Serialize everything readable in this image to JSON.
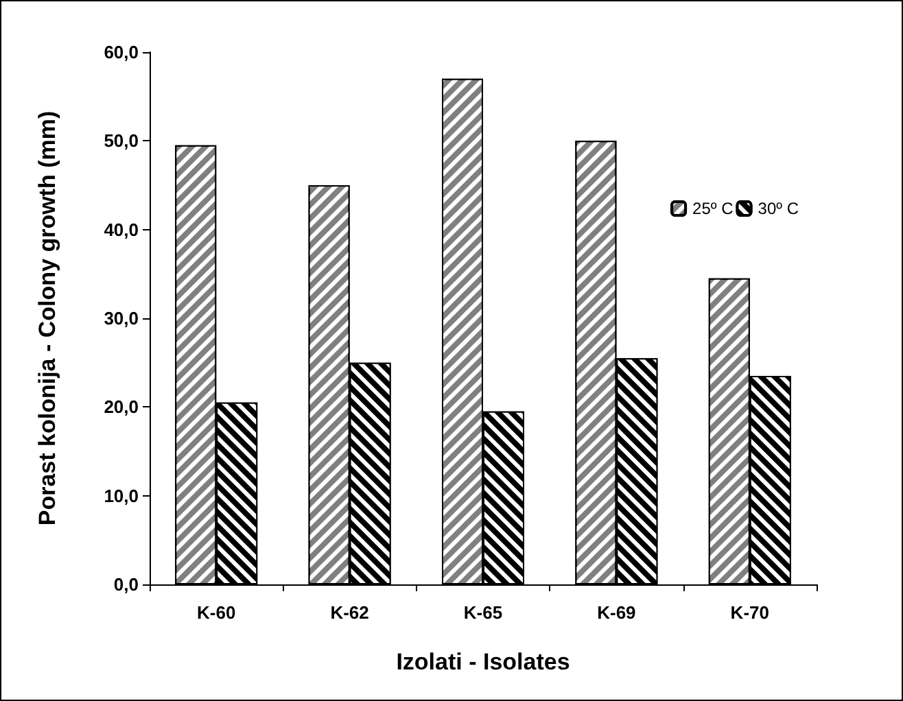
{
  "chart_data": {
    "type": "bar",
    "xlabel": "Izolati - Isolates",
    "ylabel": "Porast kolonija - Colony growth (mm)",
    "categories": [
      "K-60",
      "K-62",
      "K-65",
      "K-69",
      "K-70"
    ],
    "series": [
      {
        "name": "25º C",
        "color": "#808080",
        "values": [
          49.5,
          45,
          57,
          50,
          34.5
        ]
      },
      {
        "name": "30º C",
        "color": "#000000",
        "values": [
          20.5,
          25,
          19.5,
          25.5,
          23.5
        ]
      }
    ],
    "ylim": [
      0,
      60
    ],
    "yticks": [
      {
        "value": 0,
        "label": "0,0"
      },
      {
        "value": 10,
        "label": "10,0"
      },
      {
        "value": 20,
        "label": "20,0"
      },
      {
        "value": 30,
        "label": "30,0"
      },
      {
        "value": 40,
        "label": "40,0"
      },
      {
        "value": 50,
        "label": "50,0"
      },
      {
        "value": 60,
        "label": "60,0"
      }
    ],
    "legend": "top right",
    "grid": false
  }
}
